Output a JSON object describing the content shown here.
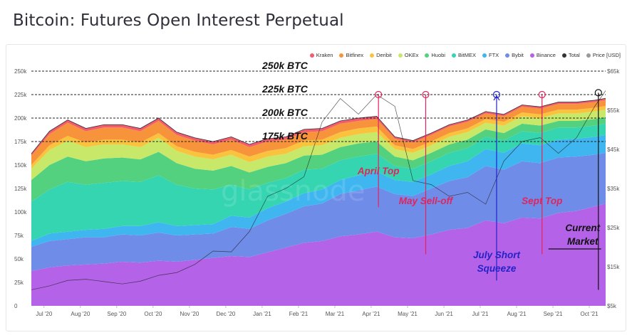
{
  "title": "Bitcoin: Futures Open Interest Perpetual",
  "watermark": "glassnode",
  "legend": [
    {
      "name": "Kraken",
      "color": "#f25c6e"
    },
    {
      "name": "Bitfinex",
      "color": "#f7943b"
    },
    {
      "name": "Deribit",
      "color": "#f9c33d"
    },
    {
      "name": "OKEx",
      "color": "#c8e86a"
    },
    {
      "name": "Huobi",
      "color": "#54d17e"
    },
    {
      "name": "BitMEX",
      "color": "#35d5b2"
    },
    {
      "name": "FTX",
      "color": "#3fb6f0"
    },
    {
      "name": "Bybit",
      "color": "#6f8de8"
    },
    {
      "name": "Binance",
      "color": "#b462e8"
    },
    {
      "name": "Total",
      "color": "#333333"
    },
    {
      "name": "Price [USD]",
      "color": "#999999"
    }
  ],
  "chart_data": {
    "type": "area",
    "stacked": true,
    "xlabel": "",
    "ylabel": "",
    "x_ticks": [
      "Jul '20",
      "Aug '20",
      "Sep '20",
      "Oct '20",
      "Nov '20",
      "Dec '20",
      "Jan '21",
      "Feb '21",
      "Mar '21",
      "Apr '21",
      "May '21",
      "Jun '21",
      "Jul '21",
      "Aug '21",
      "Sep '21",
      "Oct '21"
    ],
    "x_range_months": [
      0.0,
      15.8
    ],
    "ylim": [
      0,
      250000
    ],
    "y_ticks": [
      "0",
      "25k",
      "50k",
      "75k",
      "100k",
      "125k",
      "150k",
      "175k",
      "200k",
      "225k",
      "250k"
    ],
    "y2_ticks": [
      "$5k",
      "$15k",
      "$25k",
      "$35k",
      "$45k",
      "$55k",
      "$65k"
    ],
    "y2lim": [
      5000,
      65000
    ],
    "y2_scale": "linear",
    "x": [
      0,
      0.5,
      1,
      1.5,
      2,
      2.5,
      3,
      3.5,
      4,
      4.5,
      5,
      5.5,
      6,
      6.5,
      7,
      7.5,
      8,
      8.5,
      9,
      9.5,
      10,
      10.5,
      11,
      11.5,
      12,
      12.5,
      13,
      13.5,
      14,
      14.5,
      15,
      15.5,
      15.8
    ],
    "series": [
      {
        "name": "Binance",
        "values": [
          37000,
          41000,
          43000,
          44000,
          45000,
          47000,
          46000,
          48000,
          47000,
          49000,
          51000,
          53000,
          52000,
          57000,
          62000,
          67000,
          69000,
          74000,
          76000,
          79000,
          73000,
          72000,
          76000,
          81000,
          83000,
          91000,
          88000,
          94000,
          93000,
          99000,
          101000,
          106000,
          109000
        ]
      },
      {
        "name": "Bybit",
        "values": [
          26000,
          28000,
          28000,
          29000,
          28000,
          29000,
          29000,
          30000,
          28000,
          27000,
          26000,
          31000,
          30000,
          34000,
          36000,
          39000,
          40000,
          45000,
          47000,
          48000,
          46000,
          45000,
          49000,
          52000,
          54000,
          58000,
          57000,
          60000,
          59000,
          59000,
          58000,
          55000,
          54000
        ]
      },
      {
        "name": "FTX",
        "values": [
          6000,
          8000,
          8000,
          8000,
          9000,
          9000,
          10000,
          11000,
          10000,
          10000,
          10000,
          12000,
          12000,
          13000,
          13000,
          14000,
          15000,
          15000,
          16000,
          16000,
          15000,
          15000,
          15000,
          16000,
          17000,
          18000,
          18000,
          19000,
          19000,
          19000,
          19000,
          19000,
          19000
        ]
      },
      {
        "name": "BitMEX",
        "values": [
          42000,
          47000,
          53000,
          48000,
          49000,
          48000,
          47000,
          50000,
          44000,
          39000,
          37000,
          33000,
          30000,
          27000,
          25000,
          25000,
          22000,
          21000,
          20000,
          19000,
          15000,
          14000,
          14000,
          14000,
          14000,
          13000,
          13000,
          13000,
          13000,
          13000,
          12000,
          12000,
          12000
        ]
      },
      {
        "name": "Huobi",
        "values": [
          23000,
          26000,
          27000,
          25000,
          26000,
          25000,
          24000,
          25000,
          23000,
          21000,
          20000,
          20000,
          18000,
          17000,
          16000,
          15000,
          15000,
          14000,
          14000,
          13000,
          10000,
          9000,
          9000,
          9000,
          9000,
          8000,
          8000,
          8000,
          8000,
          7000,
          7000,
          7000,
          7000
        ]
      },
      {
        "name": "OKEx",
        "values": [
          12000,
          16000,
          17000,
          15000,
          15000,
          14000,
          13000,
          15000,
          13000,
          13000,
          12000,
          12000,
          11000,
          11000,
          10000,
          10000,
          10000,
          10000,
          10000,
          10000,
          8000,
          8000,
          8000,
          8000,
          8000,
          7000,
          8000,
          8000,
          8000,
          8000,
          8000,
          8000,
          8000
        ]
      },
      {
        "name": "Deribit",
        "values": [
          4000,
          5000,
          5000,
          5000,
          5000,
          5000,
          5000,
          5000,
          5000,
          5000,
          5000,
          5000,
          6000,
          6000,
          6000,
          6000,
          6000,
          6000,
          6000,
          6000,
          4000,
          4000,
          4000,
          4000,
          4000,
          4000,
          4000,
          4000,
          4000,
          4000,
          4000,
          4000,
          4000
        ]
      },
      {
        "name": "Bitfinex",
        "values": [
          10000,
          12000,
          14000,
          12000,
          13000,
          13000,
          12000,
          13000,
          12000,
          12000,
          11000,
          11000,
          10000,
          10000,
          9000,
          9000,
          9000,
          9000,
          8000,
          8000,
          7000,
          7000,
          7000,
          7000,
          7000,
          6000,
          6000,
          6000,
          6000,
          6000,
          6000,
          6000,
          6000
        ]
      },
      {
        "name": "Kraken",
        "values": [
          2000,
          3000,
          3000,
          3000,
          3000,
          3000,
          3000,
          3000,
          3000,
          3000,
          3000,
          3000,
          3000,
          3000,
          3000,
          3000,
          3000,
          3000,
          3000,
          3000,
          2000,
          2000,
          2000,
          2000,
          2000,
          2000,
          2000,
          2000,
          2000,
          2000,
          2000,
          2000,
          2000
        ]
      }
    ],
    "price": {
      "name": "Price [USD]",
      "values": [
        9100,
        10100,
        11500,
        11800,
        11200,
        10600,
        11300,
        12800,
        13500,
        15600,
        19000,
        18800,
        24000,
        33000,
        35000,
        38000,
        52000,
        58000,
        54000,
        59000,
        56000,
        37000,
        36000,
        33000,
        34000,
        31000,
        42000,
        47000,
        48000,
        44000,
        48000,
        56000,
        60000
      ]
    },
    "reference_lines": [
      {
        "label": "250k BTC",
        "value": 250000
      },
      {
        "label": "225k BTC",
        "value": 225000
      },
      {
        "label": "200k BTC",
        "value": 200000
      },
      {
        "label": "175k BTC",
        "value": 175000
      }
    ],
    "annotations": [
      {
        "text": "April Top",
        "x": 9.55,
        "color": "#e0245e"
      },
      {
        "text": "May Sell-off",
        "x": 10.85,
        "color": "#e0245e"
      },
      {
        "text": "July Short Squeeze",
        "x": 12.8,
        "color": "#2323c8"
      },
      {
        "text": "Sept Top",
        "x": 14.05,
        "color": "#e0245e"
      },
      {
        "text": "Current Market",
        "x": 15.6,
        "color": "#111111"
      }
    ]
  }
}
